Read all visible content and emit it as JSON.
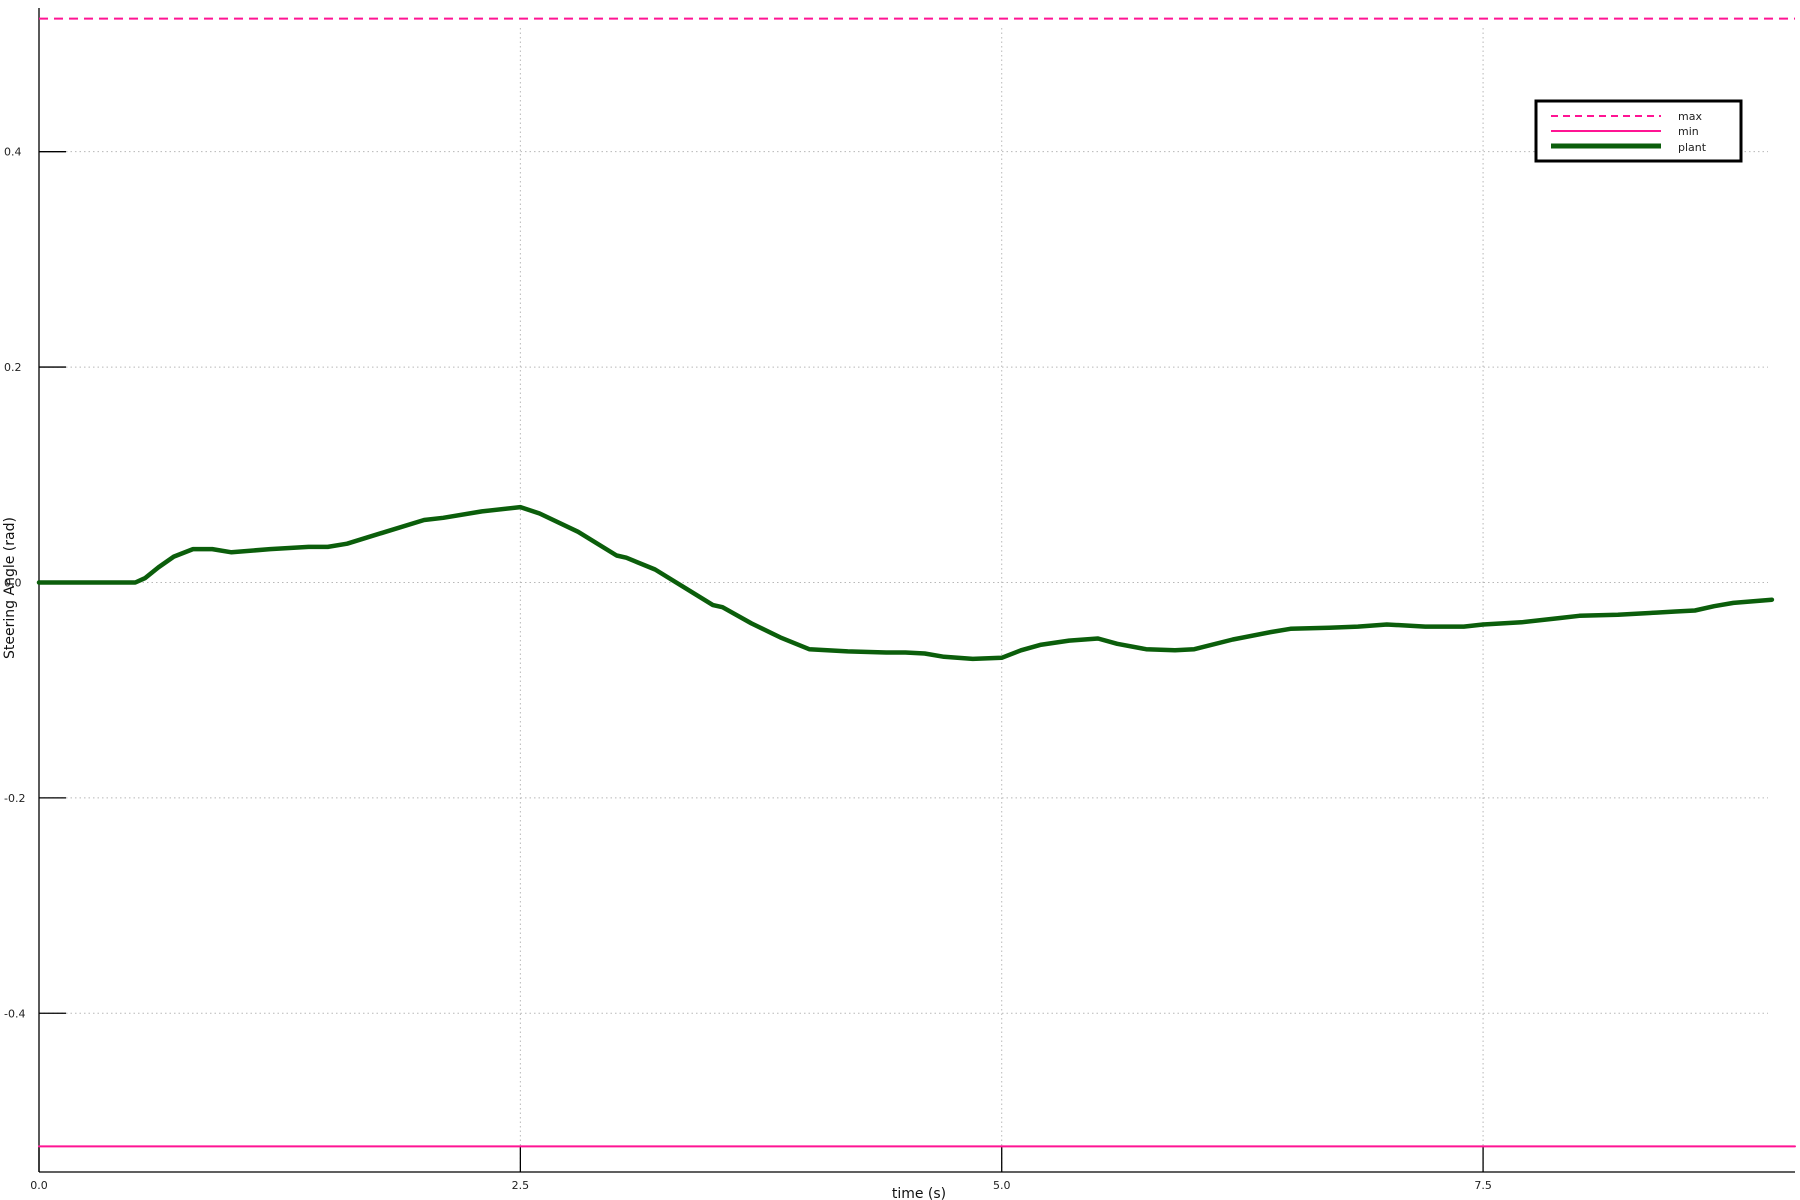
{
  "chart_data": {
    "type": "line",
    "title": "",
    "xlabel": "time (s)",
    "ylabel": "Steering Angle (rad)",
    "xlim": [
      0,
      9.12
    ],
    "ylim": [
      -0.5474,
      0.5334
    ],
    "x_ticks": [
      0.0,
      2.5,
      5.0,
      7.5
    ],
    "x_tick_labels": [
      "0.0",
      "2.5",
      "5.0",
      "7.5"
    ],
    "y_ticks": [
      -0.4,
      -0.2,
      0.0,
      0.2,
      0.4
    ],
    "y_tick_labels": [
      "-0.4",
      "-0.2",
      "0.0",
      "0.2",
      "0.4"
    ],
    "grid": true,
    "legend_position": "top-right",
    "series": [
      {
        "name": "max",
        "color": "#ff1493",
        "style": "dashed",
        "x": [
          0,
          9.12
        ],
        "y": [
          0.5236,
          0.5236
        ]
      },
      {
        "name": "min",
        "color": "#ff1493",
        "style": "solid",
        "x": [
          0,
          9.12
        ],
        "y": [
          -0.5236,
          -0.5236
        ]
      },
      {
        "name": "plant",
        "color": "#0b5e0b",
        "style": "solid-thick",
        "x": [
          0,
          0.5,
          0.55,
          0.62,
          0.7,
          0.8,
          0.9,
          1.0,
          1.2,
          1.4,
          1.5,
          1.6,
          1.8,
          2.0,
          2.1,
          2.3,
          2.5,
          2.6,
          2.8,
          3.0,
          3.05,
          3.2,
          3.4,
          3.5,
          3.55,
          3.7,
          3.85,
          4.0,
          4.2,
          4.4,
          4.5,
          4.6,
          4.7,
          4.85,
          5.0,
          5.1,
          5.2,
          5.35,
          5.5,
          5.6,
          5.75,
          5.9,
          6.0,
          6.2,
          6.4,
          6.5,
          6.7,
          6.85,
          7.0,
          7.2,
          7.4,
          7.5,
          7.7,
          7.9,
          8.0,
          8.2,
          8.4,
          8.5,
          8.6,
          8.7,
          8.8,
          9.0
        ],
        "y": [
          0.0,
          0.0,
          0.004,
          0.014,
          0.024,
          0.031,
          0.031,
          0.028,
          0.031,
          0.033,
          0.033,
          0.036,
          0.047,
          0.058,
          0.06,
          0.066,
          0.07,
          0.064,
          0.047,
          0.025,
          0.023,
          0.012,
          -0.01,
          -0.021,
          -0.023,
          -0.038,
          -0.051,
          -0.062,
          -0.064,
          -0.065,
          -0.065,
          -0.066,
          -0.069,
          -0.071,
          -0.07,
          -0.063,
          -0.058,
          -0.054,
          -0.052,
          -0.057,
          -0.062,
          -0.063,
          -0.062,
          -0.053,
          -0.046,
          -0.043,
          -0.042,
          -0.041,
          -0.039,
          -0.041,
          -0.041,
          -0.039,
          -0.037,
          -0.033,
          -0.031,
          -0.03,
          -0.028,
          -0.027,
          -0.026,
          -0.022,
          -0.019,
          -0.016
        ]
      }
    ]
  }
}
